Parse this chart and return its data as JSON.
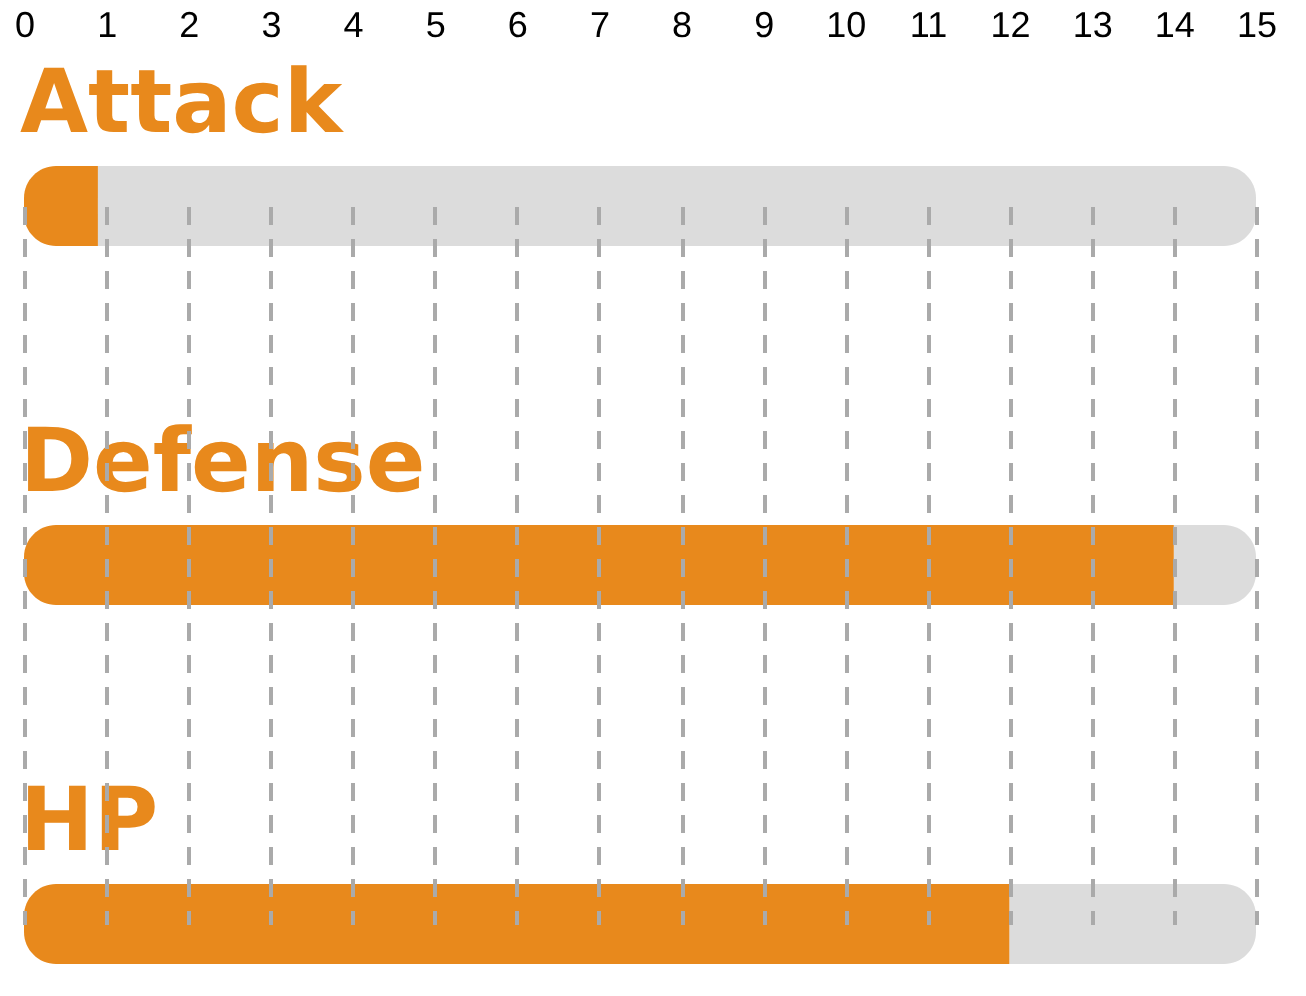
{
  "chart_data": {
    "type": "bar",
    "orientation": "horizontal",
    "stacked": true,
    "categories": [
      "Attack",
      "Defense",
      "HP"
    ],
    "series": [
      {
        "color": "#e8891c",
        "values": [
          0.9,
          14,
          12
        ]
      },
      {
        "color": "#dcdcdc",
        "values": [
          14.1,
          1,
          3
        ]
      }
    ],
    "xlim": [
      0,
      15
    ],
    "xticks": [
      0,
      1,
      2,
      3,
      4,
      5,
      6,
      7,
      8,
      9,
      10,
      11,
      12,
      13,
      14,
      15
    ],
    "grid": "x"
  }
}
